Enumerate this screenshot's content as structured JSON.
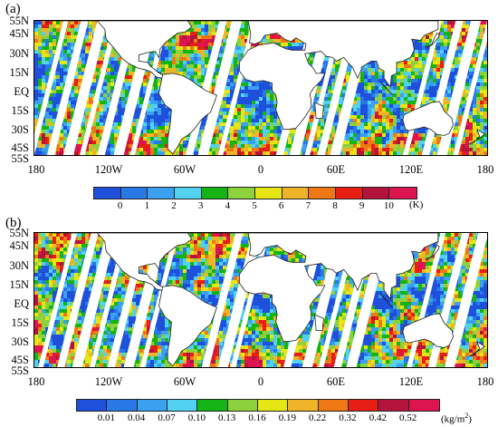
{
  "panels": [
    {
      "label": "(a)",
      "lat_labels": [
        "55N",
        "45N",
        "30N",
        "15N",
        "EQ",
        "15S",
        "30S",
        "45S",
        "55S"
      ],
      "lon_labels": [
        "180",
        "120W",
        "60W",
        "0",
        "60E",
        "120E",
        "180"
      ],
      "colorbar": {
        "colors": [
          "#1e50dc",
          "#2878e6",
          "#3ca0f0",
          "#50d2f0",
          "#14b414",
          "#8cd23c",
          "#e6e614",
          "#f0b428",
          "#f07814",
          "#e61e14",
          "#b4143c",
          "#dc1450"
        ],
        "ticks": [
          "0",
          "1",
          "2",
          "3",
          "4",
          "5",
          "6",
          "7",
          "8",
          "9",
          "10"
        ],
        "unit": "(K)"
      }
    },
    {
      "label": "(b)",
      "lat_labels": [
        "55N",
        "45N",
        "30N",
        "15N",
        "EQ",
        "15S",
        "30S",
        "45S",
        "55S"
      ],
      "lon_labels": [
        "180",
        "120W",
        "60W",
        "0",
        "60E",
        "120E",
        "180"
      ],
      "colorbar": {
        "colors": [
          "#1e50dc",
          "#2878e6",
          "#3ca0f0",
          "#50d2f0",
          "#14b414",
          "#8cd23c",
          "#e6e614",
          "#f0b428",
          "#f07814",
          "#e61e14",
          "#b4143c",
          "#dc1450"
        ],
        "ticks": [
          "0.01",
          "0.04",
          "0.07",
          "0.10",
          "0.13",
          "0.16",
          "0.19",
          "0.22",
          "0.32",
          "0.42",
          "0.52"
        ],
        "unit_prefix": "(kg/m",
        "unit_sup": "2",
        "unit_suffix": ")"
      }
    }
  ]
}
